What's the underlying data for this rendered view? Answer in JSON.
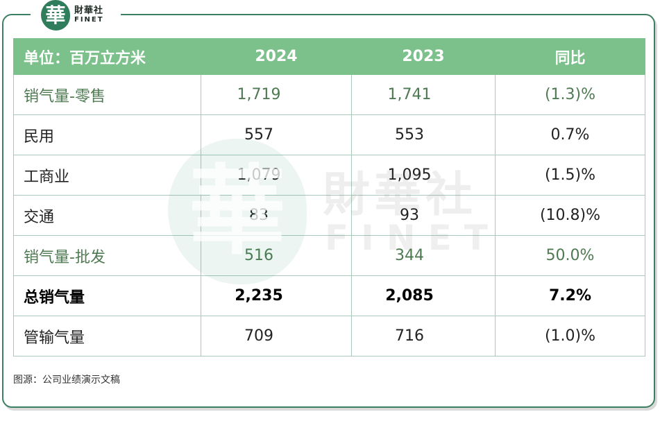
{
  "logo": {
    "seal_char": "華",
    "name_cn": "財華社",
    "name_en": "FINET"
  },
  "watermark": {
    "seal_char": "華",
    "name_cn": "財華社",
    "name_en": "FINET"
  },
  "table": {
    "headers": [
      "单位：百万立方米",
      "2024",
      "2023",
      "同比"
    ],
    "rows": [
      {
        "label": "销气量-零售",
        "v2024": "1,719",
        "v2023": "1,741",
        "yoy": "(1.3)%",
        "style": "green"
      },
      {
        "label": "民用",
        "v2024": "557",
        "v2023": "553",
        "yoy": "0.7%",
        "style": "normal"
      },
      {
        "label": "工商业",
        "v2024": "1,079",
        "v2023": "1,095",
        "yoy": "(1.5)%",
        "style": "normal"
      },
      {
        "label": "交通",
        "v2024": "83",
        "v2023": "93",
        "yoy": "(10.8)%",
        "style": "normal"
      },
      {
        "label": "销气量-批发",
        "v2024": "516",
        "v2023": "344",
        "yoy": "50.0%",
        "style": "green"
      },
      {
        "label": "总销气量",
        "v2024": "2,235",
        "v2023": "2,085",
        "yoy": "7.2%",
        "style": "bold"
      },
      {
        "label": "管输气量",
        "v2024": "709",
        "v2023": "716",
        "yoy": "(1.0)%",
        "style": "normal"
      }
    ]
  },
  "source": "图源：公司业绩演示文稿",
  "colors": {
    "header_bg": "#7cc08b",
    "frame_border": "#3c7f62",
    "green_text": "#4e7a51",
    "grid_line": "#a9c9bb"
  }
}
